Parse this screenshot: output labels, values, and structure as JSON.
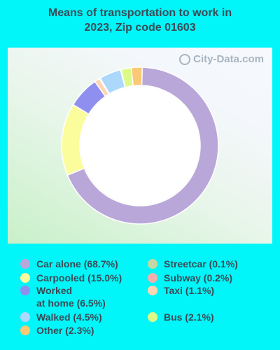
{
  "chart_data": {
    "type": "pie",
    "title_line1": "Means of transportation to work in",
    "title_line2": "2023, Zip code 01603",
    "watermark": "City-Data.com",
    "series": [
      {
        "name": "Car alone",
        "label": "Car alone (68.7%)",
        "value": 68.7,
        "color": "#b9a7d9"
      },
      {
        "name": "Carpooled",
        "label": "Carpooled (15.0%)",
        "value": 15.0,
        "color": "#fbfc9c"
      },
      {
        "name": "Worked at home",
        "label": "Worked\nat home (6.5%)",
        "value": 6.5,
        "color": "#8f8ff0"
      },
      {
        "name": "Walked",
        "label": "Walked (4.5%)",
        "value": 4.5,
        "color": "#acd8fb"
      },
      {
        "name": "Other",
        "label": "Other (2.3%)",
        "value": 2.3,
        "color": "#fbc875"
      },
      {
        "name": "Streetcar",
        "label": "Streetcar (0.1%)",
        "value": 0.1,
        "color": "#c4d8a4"
      },
      {
        "name": "Subway",
        "label": "Subway (0.2%)",
        "value": 0.2,
        "color": "#f2b0ac"
      },
      {
        "name": "Taxi",
        "label": "Taxi (1.1%)",
        "value": 1.1,
        "color": "#fed5b3"
      },
      {
        "name": "Bus",
        "label": "Bus (2.1%)",
        "value": 2.1,
        "color": "#ddfa88"
      }
    ],
    "clockwise_order": [
      "Other",
      "Car alone",
      "Carpooled",
      "Worked at home",
      "Taxi",
      "Subway",
      "Walked",
      "Streetcar",
      "Bus"
    ]
  }
}
